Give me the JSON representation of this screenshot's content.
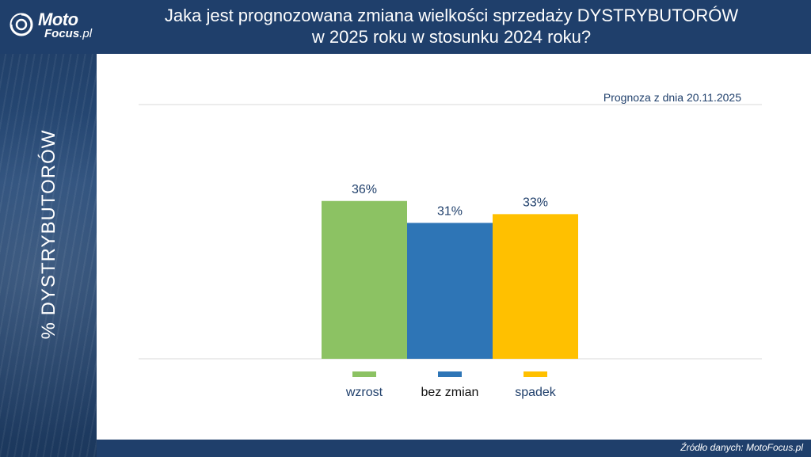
{
  "brand": {
    "name_top": "Moto",
    "name_bottom": "Focus",
    "name_suffix": ".pl"
  },
  "title_line1": "Jaka jest prognozowana zmiana wielkości sprzedaży DYSTRYBUTORÓW",
  "title_line2": "w 2025 roku w stosunku 2024 roku?",
  "subtitle": "Prognoza z dnia 20.11.2025",
  "source": "Źródło danych: MotoFocus.pl",
  "colors": {
    "navy": "#1f3f6b",
    "green": "#8cc263",
    "blue": "#2e75b6",
    "yellow": "#ffc000"
  },
  "chart_data": {
    "type": "bar",
    "categories": [
      "wzrost",
      "bez zmian",
      "spadek"
    ],
    "values": [
      36,
      31,
      33
    ],
    "value_labels": [
      "36%",
      "31%",
      "33%"
    ],
    "colors": [
      "#8cc263",
      "#2e75b6",
      "#ffc000"
    ],
    "legend_text_colors": [
      "#1f3f6b",
      "#111111",
      "#1f3f6b"
    ],
    "ylabel": "%  DYSTRYBUTORÓW",
    "ylim": [
      0,
      58
    ],
    "grid": true,
    "legend_position": "bottom"
  }
}
